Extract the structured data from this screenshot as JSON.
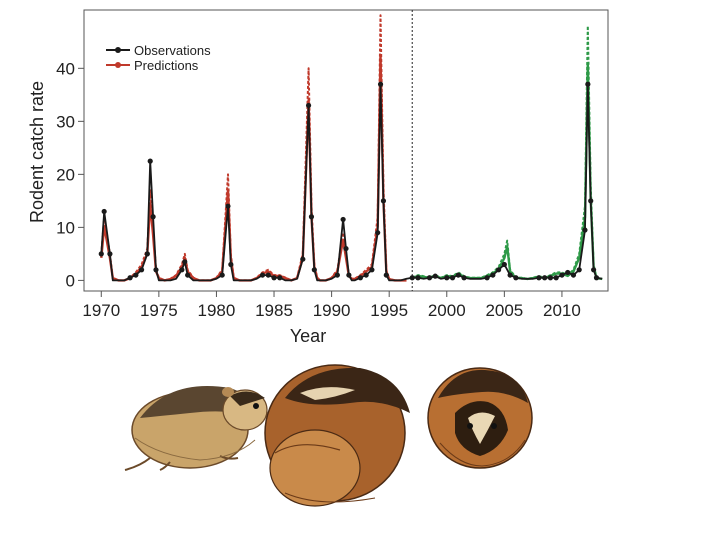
{
  "chart_data": {
    "type": "line",
    "xlabel": "Year",
    "ylabel": "Rodent catch rate",
    "xlim": [
      1968.5,
      2014
    ],
    "ylim": [
      -2,
      51
    ],
    "xticks": [
      1970,
      1975,
      1980,
      1985,
      1990,
      1995,
      2000,
      2005,
      2010
    ],
    "xtick_labels": [
      "1970",
      "1975",
      "1980",
      "1985",
      "1990",
      "1995",
      "2000",
      "2005",
      "2010"
    ],
    "yticks": [
      0,
      10,
      20,
      30,
      40
    ],
    "ytick_labels": [
      "0",
      "10",
      "20",
      "30",
      "40"
    ],
    "vline_x": 1997,
    "legend": [
      {
        "label": "Observations",
        "color": "#1a1a1a"
      },
      {
        "label": "Predictions",
        "color": "#c0392b"
      }
    ],
    "legend_position": "top-left",
    "grid": false,
    "observations": {
      "name": "Observations",
      "color": "#1a1a1a",
      "x": [
        1970.0,
        1970.25,
        1970.75,
        1971.0,
        1971.5,
        1972.0,
        1972.5,
        1973.0,
        1973.5,
        1974.0,
        1974.25,
        1974.5,
        1974.75,
        1975.0,
        1975.5,
        1976.0,
        1976.5,
        1977.0,
        1977.25,
        1977.5,
        1978.0,
        1978.5,
        1979.0,
        1979.5,
        1980.0,
        1980.5,
        1981.0,
        1981.25,
        1981.5,
        1982.0,
        1982.5,
        1983.0,
        1983.5,
        1984.0,
        1984.5,
        1985.0,
        1985.5,
        1986.0,
        1986.5,
        1987.0,
        1987.5,
        1988.0,
        1988.25,
        1988.5,
        1988.75,
        1989.0,
        1989.5,
        1990.0,
        1990.5,
        1991.0,
        1991.25,
        1991.5,
        1991.75,
        1992.0,
        1992.5,
        1993.0,
        1993.5,
        1994.0,
        1994.25,
        1994.5,
        1994.75,
        1995.0,
        1995.5,
        1996.0,
        1996.5,
        1997.0,
        1997.5,
        1998.0,
        1998.5,
        1999.0,
        1999.5,
        2000.0,
        2000.5,
        2001.0,
        2001.5,
        2002.0,
        2002.5,
        2003.0,
        2003.5,
        2004.0,
        2004.5,
        2005.0,
        2005.5,
        2006.0,
        2006.5,
        2007.0,
        2007.5,
        2008.0,
        2008.5,
        2009.0,
        2009.5,
        2010.0,
        2010.5,
        2011.0,
        2011.5,
        2012.0,
        2012.25,
        2012.5,
        2012.75,
        2013.0,
        2013.5
      ],
      "y": [
        5,
        13,
        5,
        0,
        0,
        0,
        0.5,
        1,
        2,
        5,
        22.5,
        12,
        2,
        0,
        0,
        0,
        0.3,
        2,
        3.5,
        1,
        0,
        0,
        0,
        0,
        0.3,
        1,
        14,
        3,
        0,
        0,
        0,
        0,
        0.3,
        1,
        1,
        0.5,
        0.5,
        0,
        0,
        0.3,
        4,
        33,
        12,
        2,
        0,
        0,
        0,
        0.3,
        1,
        11.5,
        6,
        1,
        0,
        0,
        0.5,
        1,
        2,
        9,
        37,
        15,
        1,
        0,
        0,
        0,
        0.3,
        0.5,
        0.5,
        0.3,
        0.5,
        0.8,
        0.3,
        0.5,
        0.5,
        1,
        0.5,
        0.3,
        0.3,
        0.3,
        0.5,
        1,
        2,
        3,
        1,
        0.5,
        0.3,
        0.3,
        0.3,
        0.5,
        0.5,
        0.5,
        0.5,
        1,
        1.5,
        1,
        2,
        9.5,
        37,
        15,
        2,
        0.5,
        0.3
      ]
    },
    "predictions": {
      "name": "Predictions",
      "color": "#c0392b",
      "x": [
        1970.0,
        1970.25,
        1970.75,
        1971.0,
        1971.5,
        1972.0,
        1972.5,
        1973.0,
        1973.5,
        1974.0,
        1974.25,
        1974.5,
        1974.75,
        1975.0,
        1975.5,
        1976.0,
        1976.5,
        1977.0,
        1977.25,
        1977.5,
        1978.0,
        1978.5,
        1979.0,
        1979.5,
        1980.0,
        1980.5,
        1981.0,
        1981.25,
        1981.5,
        1982.0,
        1982.5,
        1983.0,
        1983.5,
        1984.0,
        1984.5,
        1985.0,
        1985.5,
        1986.0,
        1986.5,
        1987.0,
        1987.5,
        1988.0,
        1988.25,
        1988.5,
        1988.75,
        1989.0,
        1989.5,
        1990.0,
        1990.5,
        1991.0,
        1991.25,
        1991.5,
        1991.75,
        1992.0,
        1992.5,
        1993.0,
        1993.5,
        1994.0,
        1994.25,
        1994.5,
        1994.75,
        1995.0,
        1995.5,
        1996.0,
        1996.5
      ],
      "y": [
        5,
        12,
        5,
        0.5,
        0,
        0,
        0.5,
        1.5,
        3,
        6,
        17,
        10,
        2,
        0.5,
        0,
        0.3,
        1,
        3,
        5,
        2,
        0.5,
        0,
        0,
        0,
        0.5,
        2,
        20,
        5,
        0.5,
        0,
        0,
        0,
        0.5,
        1.5,
        2,
        1,
        1,
        0.5,
        0,
        0.5,
        5,
        40,
        14,
        3,
        0.5,
        0,
        0,
        0.5,
        2,
        9,
        5,
        1,
        0.3,
        0.3,
        1,
        2,
        3,
        12,
        50,
        18,
        2,
        0.3,
        0,
        0,
        0
      ]
    },
    "predictions_2": {
      "name": "",
      "color": "#2e9a48",
      "x": [
        1997.0,
        1997.5,
        1998.0,
        1998.5,
        1999.0,
        1999.5,
        2000.0,
        2000.5,
        2001.0,
        2001.5,
        2002.0,
        2002.5,
        2003.0,
        2003.5,
        2004.0,
        2004.5,
        2005.0,
        2005.25,
        2005.5,
        2006.0,
        2006.5,
        2007.0,
        2007.5,
        2008.0,
        2008.5,
        2009.0,
        2009.5,
        2010.0,
        2010.5,
        2011.0,
        2011.5,
        2012.0,
        2012.25,
        2012.5,
        2012.75,
        2013.0,
        2013.5
      ],
      "y": [
        0.5,
        1,
        0.8,
        0.5,
        1,
        0.5,
        1,
        0.8,
        1.5,
        0.8,
        0.5,
        0.5,
        0.5,
        1,
        1.5,
        2.5,
        5,
        7.5,
        2,
        0.5,
        0.5,
        0.3,
        0.5,
        0.8,
        0.5,
        1,
        1.5,
        1.5,
        1,
        2,
        5,
        14,
        48,
        18,
        3,
        0.5,
        0.3
      ]
    }
  },
  "illustration": {
    "icon": "lemming-illustration"
  }
}
